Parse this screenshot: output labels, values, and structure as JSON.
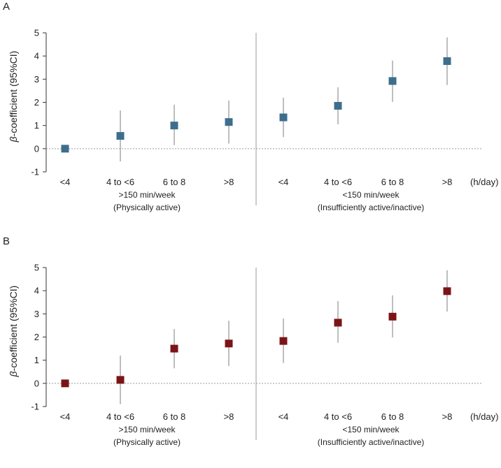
{
  "chart_data": [
    {
      "panel": "A",
      "type": "scatter",
      "title": "",
      "ylabel_symbol": "β",
      "ylabel_rest": "-coefficient (95%CI)",
      "ylim": [
        -1,
        5
      ],
      "yticks": [
        -1,
        0,
        1,
        2,
        3,
        4,
        5
      ],
      "reference_line": 0,
      "x_unit": "(h/day)",
      "marker_color": "#3d6e8c",
      "groups": [
        {
          "label_line1": ">150 min/week",
          "label_line2": "(Physically active)",
          "points": [
            {
              "category": "<4",
              "value": 0.0,
              "ci_low": 0.0,
              "ci_high": 0.0
            },
            {
              "category": "4 to <6",
              "value": 0.55,
              "ci_low": -0.55,
              "ci_high": 1.65
            },
            {
              "category": "6 to 8",
              "value": 1.0,
              "ci_low": 0.15,
              "ci_high": 1.9
            },
            {
              "category": ">8",
              "value": 1.15,
              "ci_low": 0.22,
              "ci_high": 2.08
            }
          ]
        },
        {
          "label_line1": "<150 min/week",
          "label_line2": "(Insufficiently active/inactive)",
          "points": [
            {
              "category": "<4",
              "value": 1.35,
              "ci_low": 0.5,
              "ci_high": 2.2
            },
            {
              "category": "4 to <6",
              "value": 1.85,
              "ci_low": 1.05,
              "ci_high": 2.65
            },
            {
              "category": "6 to 8",
              "value": 2.92,
              "ci_low": 2.02,
              "ci_high": 3.8
            },
            {
              "category": ">8",
              "value": 3.78,
              "ci_low": 2.75,
              "ci_high": 4.8
            }
          ]
        }
      ]
    },
    {
      "panel": "B",
      "type": "scatter",
      "title": "",
      "ylabel_symbol": "β",
      "ylabel_rest": "-coefficient (95%CI)",
      "ylim": [
        -1,
        5
      ],
      "yticks": [
        -1,
        0,
        1,
        2,
        3,
        4,
        5
      ],
      "reference_line": 0,
      "x_unit": "(h/day)",
      "marker_color": "#7b1416",
      "groups": [
        {
          "label_line1": ">150 min/week",
          "label_line2": "(Physically active)",
          "points": [
            {
              "category": "<4",
              "value": 0.0,
              "ci_low": 0.0,
              "ci_high": 0.0
            },
            {
              "category": "4 to <6",
              "value": 0.15,
              "ci_low": -0.9,
              "ci_high": 1.2
            },
            {
              "category": "6 to 8",
              "value": 1.5,
              "ci_low": 0.65,
              "ci_high": 2.35
            },
            {
              "category": ">8",
              "value": 1.72,
              "ci_low": 0.75,
              "ci_high": 2.7
            }
          ]
        },
        {
          "label_line1": "<150 min/week",
          "label_line2": "(Insufficiently active/inactive)",
          "points": [
            {
              "category": "<4",
              "value": 1.83,
              "ci_low": 0.88,
              "ci_high": 2.8
            },
            {
              "category": "4 to <6",
              "value": 2.62,
              "ci_low": 1.75,
              "ci_high": 3.55
            },
            {
              "category": "6 to 8",
              "value": 2.88,
              "ci_low": 1.98,
              "ci_high": 3.8
            },
            {
              "category": ">8",
              "value": 3.98,
              "ci_low": 3.1,
              "ci_high": 4.88
            }
          ]
        }
      ]
    }
  ]
}
